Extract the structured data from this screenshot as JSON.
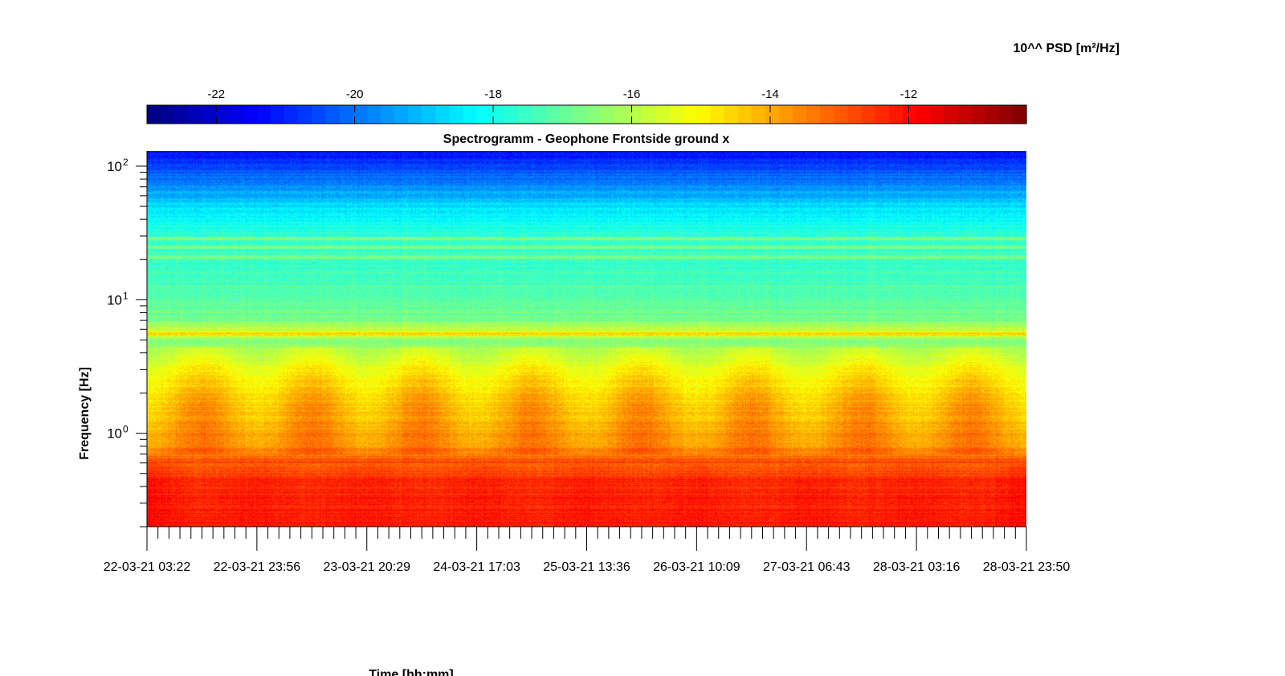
{
  "chart_data": {
    "type": "heatmap",
    "title": "Spectrogramm - Geophone Frontside ground x",
    "xlabel": "Time [hh:mm]",
    "ylabel": "Frequency [Hz]",
    "colorbar_label": "10^^ PSD [m²/Hz]",
    "colormap": "jet",
    "color_range": [
      -23,
      -10.3
    ],
    "colorbar_ticks": [
      -22,
      -20,
      -18,
      -16,
      -14,
      -12
    ],
    "colorbar_tick_labels": [
      "-22",
      "-20",
      "-18",
      "-16",
      "-14",
      "-12"
    ],
    "y_scale": "log",
    "ylim": [
      0.2,
      130
    ],
    "y_ticks": [
      1,
      10,
      100
    ],
    "y_tick_labels": [
      {
        "base": "10",
        "exp": "0"
      },
      {
        "base": "10",
        "exp": "1"
      },
      {
        "base": "10",
        "exp": "2"
      }
    ],
    "x_ticks": [
      "22-03-21 03:22",
      "22-03-21 23:56",
      "23-03-21 20:29",
      "24-03-21 17:03",
      "25-03-21 13:36",
      "26-03-21 10:09",
      "27-03-21 06:43",
      "28-03-21 03:16",
      "28-03-21 23:50"
    ],
    "colorbar_position": "top",
    "grid": false,
    "psd_profile_log10": [
      {
        "f": 0.2,
        "psd": -11.6
      },
      {
        "f": 0.45,
        "psd": -11.8
      },
      {
        "f": 0.6,
        "psd": -12.6
      },
      {
        "f": 0.8,
        "psd": -14.2
      },
      {
        "f": 1.5,
        "psd": -14.8
      },
      {
        "f": 3.0,
        "psd": -15.6
      },
      {
        "f": 5.0,
        "psd": -16.6
      },
      {
        "f": 5.6,
        "psd": -15.2
      },
      {
        "f": 7.0,
        "psd": -16.8
      },
      {
        "f": 15.0,
        "psd": -17.4
      },
      {
        "f": 30.0,
        "psd": -17.6
      },
      {
        "f": 50.0,
        "psd": -18.6
      },
      {
        "f": 80.0,
        "psd": -20.0
      },
      {
        "f": 130.0,
        "psd": -21.3
      }
    ],
    "narrow_band_lines_hz": [
      5.6,
      21,
      25,
      29
    ],
    "day_night_bursts_x_tick_index": [
      0.5,
      1.5,
      2.5,
      3.5,
      4.5,
      5.5,
      6.5,
      7.5
    ]
  }
}
